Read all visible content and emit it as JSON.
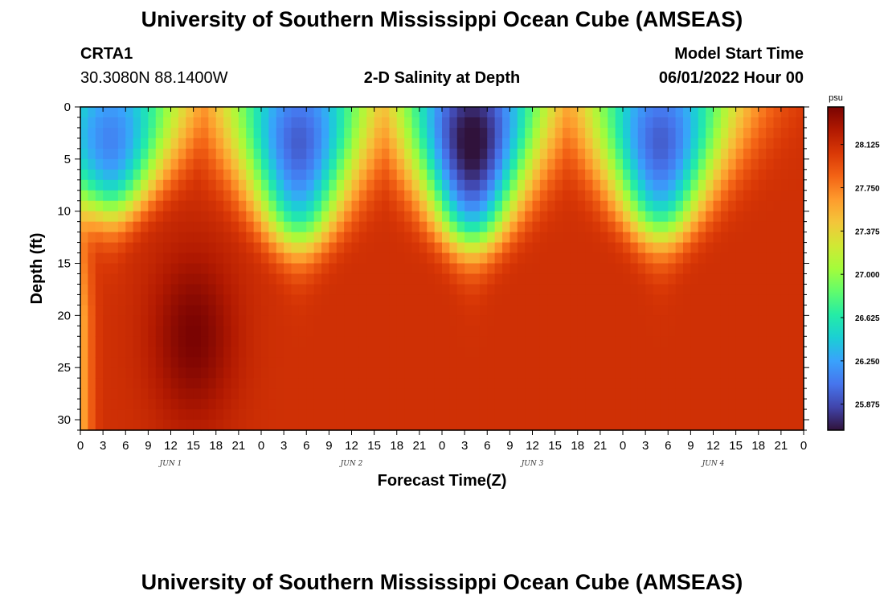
{
  "header": {
    "title": "University of Southern Mississippi Ocean Cube (AMSEAS)",
    "station": "CRTA1",
    "location": "30.3080N  88.1400W",
    "plot_title": "2-D Salinity at Depth",
    "model_start_label": "Model Start Time",
    "model_start_value": "06/01/2022 Hour 00"
  },
  "footer": {
    "title": "University of Southern Mississippi Ocean Cube (AMSEAS)"
  },
  "chart_data": {
    "type": "heatmap",
    "title": "2-D Salinity at Depth",
    "xlabel": "Forecast Time(Z)",
    "ylabel": "Depth (ft)",
    "units": "psu",
    "x_range_hours": [
      0,
      96
    ],
    "y_range_ft": [
      0,
      31
    ],
    "x_tick_labels": [
      "0",
      "3",
      "6",
      "9",
      "12",
      "15",
      "18",
      "21",
      "0",
      "3",
      "6",
      "9",
      "12",
      "15",
      "18",
      "21",
      "0",
      "3",
      "6",
      "9",
      "12",
      "15",
      "18",
      "21",
      "0",
      "3",
      "6",
      "9",
      "12",
      "15",
      "18",
      "21",
      "0"
    ],
    "day_labels": [
      "JUN 1",
      "JUN 2",
      "JUN 3",
      "JUN 4"
    ],
    "y_ticks": [
      0,
      5,
      10,
      15,
      20,
      25,
      30
    ],
    "colorbar": {
      "range": [
        25.65,
        28.45
      ],
      "tick_labels": [
        "25.875",
        "26.250",
        "26.625",
        "27.000",
        "27.375",
        "27.750",
        "28.125"
      ],
      "colors": [
        "#30123b",
        "#4145ab",
        "#4675ed",
        "#39a2fc",
        "#1bcfd4",
        "#24eca6",
        "#61fc6c",
        "#a4fc3b",
        "#d1e834",
        "#f3c63a",
        "#fe9b2d",
        "#f36315",
        "#d93806",
        "#b11901",
        "#7a0402"
      ]
    },
    "features": [
      {
        "kind": "fresh_lens",
        "center_hour": 4,
        "min_psu": 26.1,
        "max_depth_ft": 15
      },
      {
        "kind": "fresh_lens",
        "center_hour": 29,
        "min_psu": 25.95,
        "max_depth_ft": 19
      },
      {
        "kind": "fresh_lens",
        "center_hour": 52,
        "min_psu": 25.6,
        "max_depth_ft": 19
      },
      {
        "kind": "fresh_lens",
        "center_hour": 77,
        "min_psu": 25.95,
        "max_depth_ft": 18
      },
      {
        "kind": "salty_core",
        "center_hour": 15,
        "max_psu": 28.45,
        "depth_ft": 22
      }
    ]
  }
}
